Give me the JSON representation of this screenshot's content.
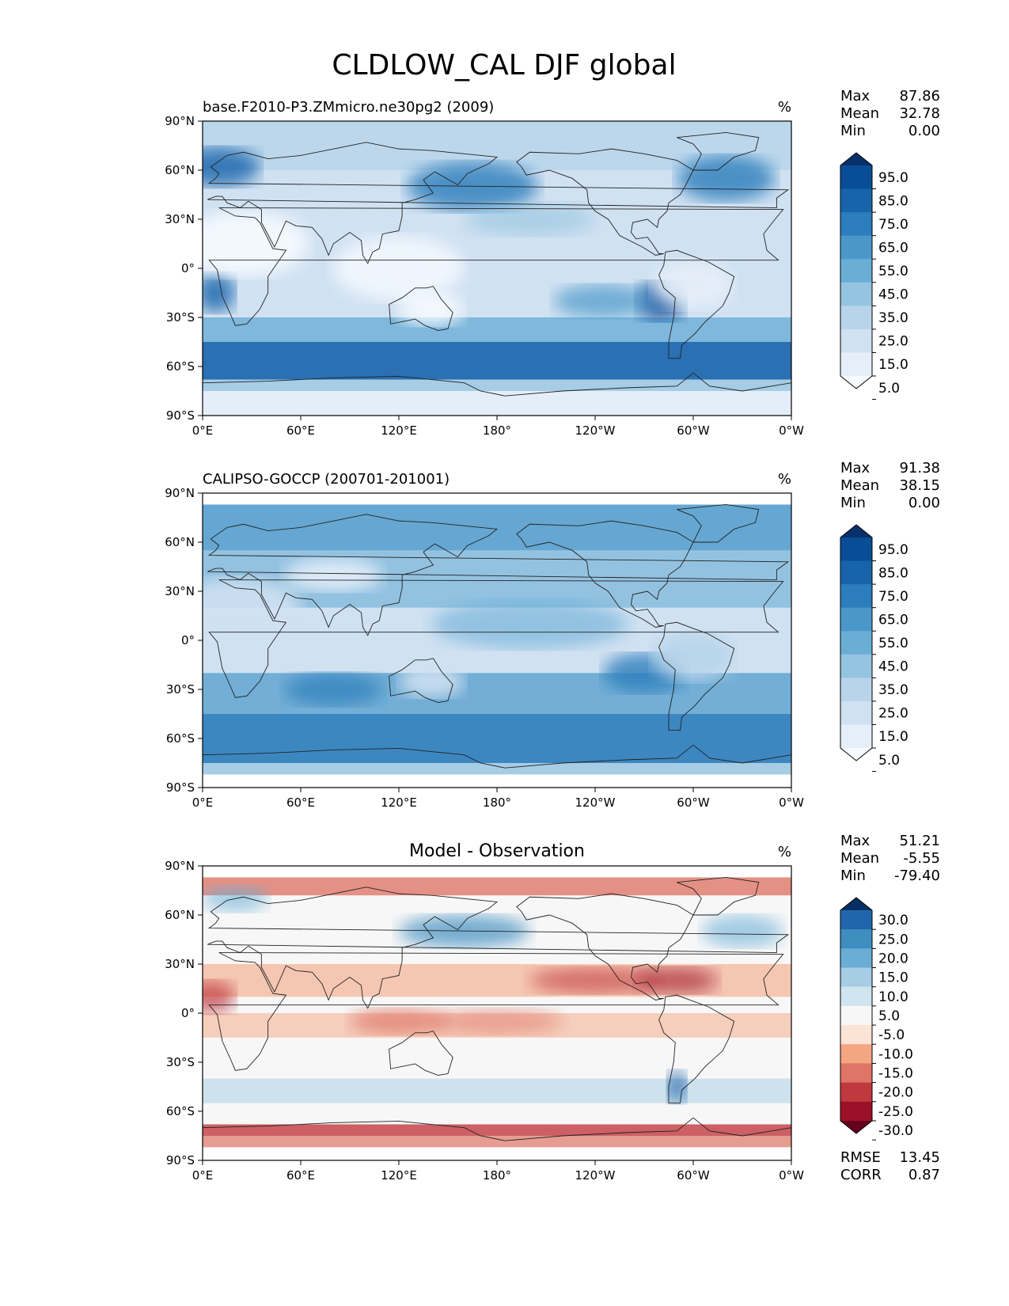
{
  "figure": {
    "title": "CLDLOW_CAL DJF global",
    "lat_ticks": [
      "90°N",
      "60°N",
      "30°N",
      "0°",
      "30°S",
      "60°S",
      "90°S"
    ],
    "lon_ticks": [
      "0°E",
      "60°E",
      "120°E",
      "180°",
      "120°W",
      "60°W",
      "0°W"
    ]
  },
  "chart_data": [
    {
      "type": "heatmap",
      "title": "base.F2010-P3.ZMmicro.ne30pg2 (2009)",
      "units": "%",
      "stats": [
        {
          "label": "Max",
          "value": "87.86"
        },
        {
          "label": "Mean",
          "value": "32.78"
        },
        {
          "label": "Min",
          "value": "0.00"
        }
      ],
      "levels": [
        "95.0",
        "85.0",
        "75.0",
        "65.0",
        "55.0",
        "45.0",
        "35.0",
        "25.0",
        "15.0",
        "5.0"
      ],
      "colors": [
        "#08306b",
        "#084d96",
        "#1764ab",
        "#2c7dbb",
        "#4a98c9",
        "#6aaed6",
        "#94c4df",
        "#b7d4ea",
        "#d0e1f2",
        "#e6eff9",
        "#f7fbff"
      ],
      "xlim": [
        0,
        360
      ],
      "ylim": [
        -90,
        90
      ],
      "field_description": "simulated low cloud fraction"
    },
    {
      "type": "heatmap",
      "title": "CALIPSO-GOCCP (200701-201001)",
      "units": "%",
      "stats": [
        {
          "label": "Max",
          "value": "91.38"
        },
        {
          "label": "Mean",
          "value": "38.15"
        },
        {
          "label": "Min",
          "value": "0.00"
        }
      ],
      "levels": [
        "95.0",
        "85.0",
        "75.0",
        "65.0",
        "55.0",
        "45.0",
        "35.0",
        "25.0",
        "15.0",
        "5.0"
      ],
      "colors": [
        "#08306b",
        "#084d96",
        "#1764ab",
        "#2c7dbb",
        "#4a98c9",
        "#6aaed6",
        "#94c4df",
        "#b7d4ea",
        "#d0e1f2",
        "#e6eff9",
        "#f7fbff"
      ],
      "xlim": [
        0,
        360
      ],
      "ylim": [
        -90,
        90
      ],
      "field_description": "observed low cloud fraction"
    },
    {
      "type": "heatmap",
      "title": "Model - Observation",
      "units": "%",
      "stats": [
        {
          "label": "Max",
          "value": "51.21"
        },
        {
          "label": "Mean",
          "value": "-5.55"
        },
        {
          "label": "Min",
          "value": "-79.40"
        }
      ],
      "levels": [
        "30.0",
        "25.0",
        "20.0",
        "15.0",
        "10.0",
        "5.0",
        "-5.0",
        "-10.0",
        "-15.0",
        "-20.0",
        "-25.0",
        "-30.0"
      ],
      "colors": [
        "#053061",
        "#2166ac",
        "#3f8ec0",
        "#6aaed6",
        "#a6cde3",
        "#d1e5f0",
        "#f7f7f7",
        "#fbe3d6",
        "#f4a582",
        "#df7566",
        "#c0393e",
        "#9c1127",
        "#67001f"
      ],
      "xlim": [
        0,
        360
      ],
      "ylim": [
        -90,
        90
      ],
      "extra_stats": [
        {
          "label": "RMSE",
          "value": "13.45"
        },
        {
          "label": "CORR",
          "value": "0.87"
        }
      ],
      "field_description": "model minus observation difference"
    }
  ]
}
